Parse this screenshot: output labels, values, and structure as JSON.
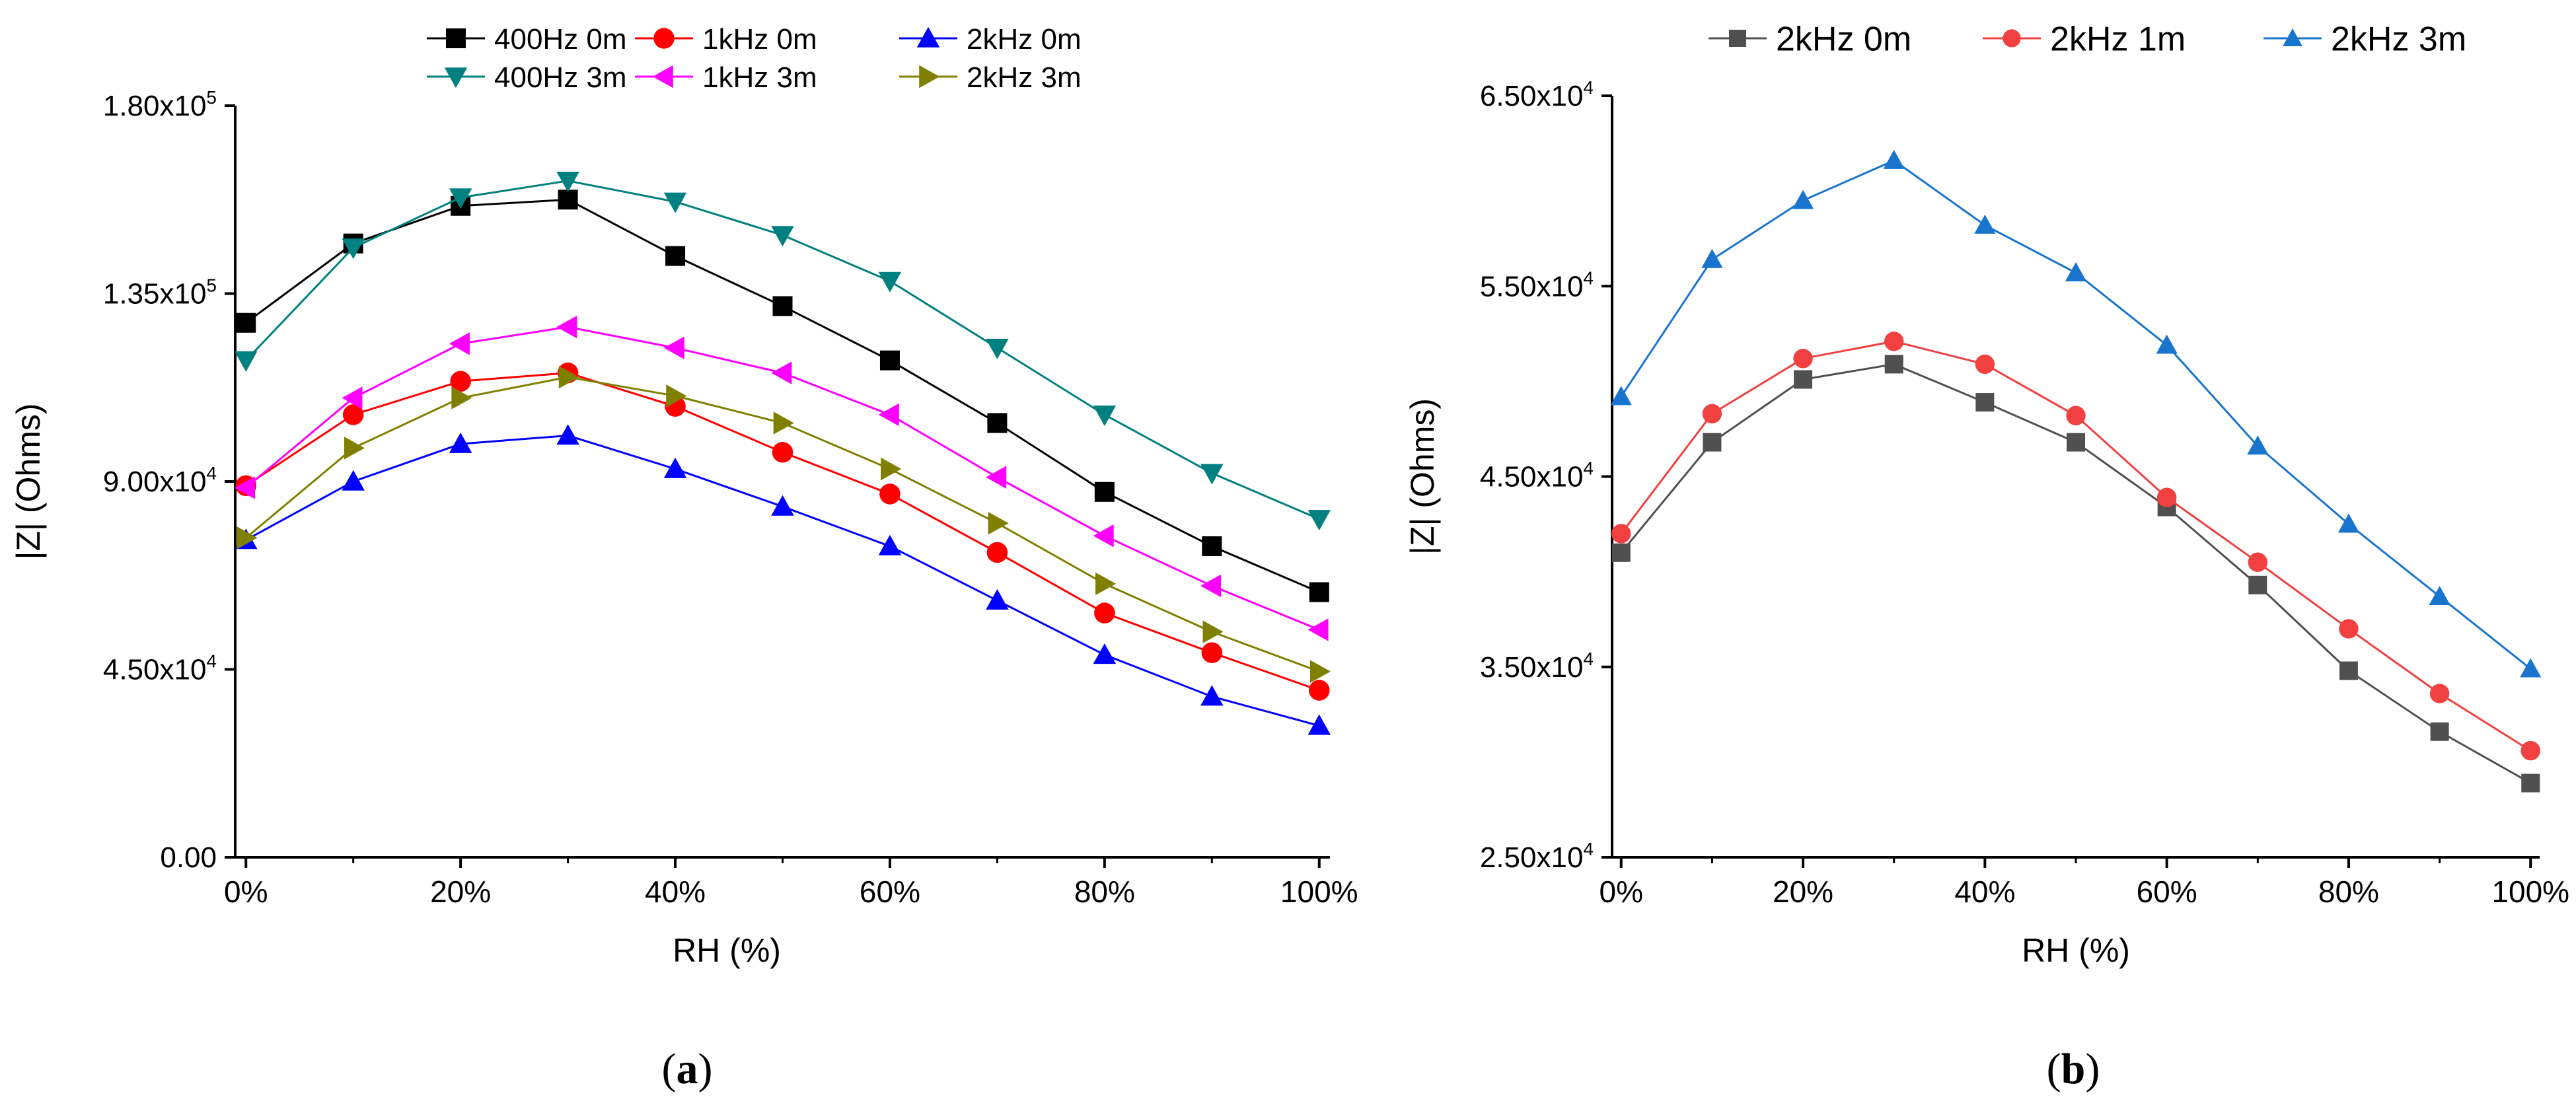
{
  "chart_data": [
    {
      "type": "line",
      "panel_label": "a",
      "xlabel": "RH (%)",
      "ylabel": "|Z| (Ohms)",
      "x": [
        0,
        10,
        20,
        30,
        40,
        50,
        60,
        70,
        80,
        90,
        100
      ],
      "x_ticks": [
        0,
        20,
        40,
        60,
        80,
        100
      ],
      "x_tick_labels": [
        "0%",
        "20%",
        "40%",
        "60%",
        "80%",
        "100%"
      ],
      "xlim": [
        -1,
        101
      ],
      "ylim": [
        0,
        180000
      ],
      "y_ticks": [
        0,
        45000,
        90000,
        135000,
        180000
      ],
      "y_tick_labels": [
        {
          "mant": "0.00",
          "exp": ""
        },
        {
          "mant": "4.50x10",
          "exp": "4"
        },
        {
          "mant": "9.00x10",
          "exp": "4"
        },
        {
          "mant": "1.35x10",
          "exp": "5"
        },
        {
          "mant": "1.80x10",
          "exp": "5"
        }
      ],
      "legend_position": "top-center",
      "series": [
        {
          "name": "400Hz 0m",
          "color": "#000000",
          "marker": "square",
          "values": [
            128000,
            147000,
            156000,
            157500,
            144000,
            132000,
            119000,
            104000,
            87500,
            74500,
            63500
          ]
        },
        {
          "name": "1kHz 0m",
          "color": "#ff0000",
          "marker": "circle",
          "values": [
            89000,
            106000,
            114000,
            116000,
            108000,
            97000,
            87000,
            73000,
            58500,
            49000,
            40000
          ]
        },
        {
          "name": "2kHz 0m",
          "color": "#0000ff",
          "marker": "triangle-up",
          "values": [
            76000,
            90000,
            99000,
            101000,
            93000,
            84000,
            74500,
            61500,
            48500,
            38500,
            31500
          ]
        },
        {
          "name": "400Hz 3m",
          "color": "#008080",
          "marker": "triangle-down",
          "values": [
            119000,
            146000,
            158000,
            162000,
            157000,
            149000,
            138000,
            122000,
            106000,
            92000,
            81000
          ]
        },
        {
          "name": "1kHz 3m",
          "color": "#ff00ff",
          "marker": "triangle-left",
          "values": [
            88500,
            110000,
            123000,
            127000,
            122000,
            116000,
            106000,
            91000,
            77000,
            65000,
            54500
          ]
        },
        {
          "name": "2kHz 3m",
          "color": "#808000",
          "marker": "triangle-right",
          "values": [
            76500,
            98000,
            110000,
            115000,
            110500,
            104000,
            93000,
            80000,
            65500,
            54000,
            44500
          ]
        }
      ]
    },
    {
      "type": "line",
      "panel_label": "b",
      "xlabel": "RH (%)",
      "ylabel": "|Z| (Ohms)",
      "x": [
        0,
        10,
        20,
        30,
        40,
        50,
        60,
        70,
        80,
        90,
        100
      ],
      "x_ticks": [
        0,
        20,
        40,
        60,
        80,
        100
      ],
      "x_tick_labels": [
        "0%",
        "20%",
        "40%",
        "60%",
        "80%",
        "100%"
      ],
      "xlim": [
        -1,
        101
      ],
      "ylim": [
        25000,
        65000
      ],
      "y_ticks": [
        25000,
        35000,
        45000,
        55000,
        65000
      ],
      "y_tick_labels": [
        {
          "mant": "2.50x10",
          "exp": "4"
        },
        {
          "mant": "3.50x10",
          "exp": "4"
        },
        {
          "mant": "4.50x10",
          "exp": "4"
        },
        {
          "mant": "5.50x10",
          "exp": "4"
        },
        {
          "mant": "6.50x10",
          "exp": "4"
        }
      ],
      "legend_position": "top-center",
      "series": [
        {
          "name": "2kHz 0m",
          "color": "#505050",
          "marker": "square",
          "values": [
            41000,
            46800,
            50100,
            50900,
            48900,
            46800,
            43400,
            39300,
            34800,
            31600,
            28900
          ]
        },
        {
          "name": "2kHz 1m",
          "color": "#f04040",
          "marker": "circle",
          "values": [
            42000,
            48300,
            51200,
            52100,
            50900,
            48200,
            43900,
            40500,
            37000,
            33600,
            30600
          ]
        },
        {
          "name": "2kHz 3m",
          "color": "#1874cd",
          "marker": "triangle-up",
          "values": [
            49200,
            56400,
            59500,
            61600,
            58200,
            55700,
            51900,
            46600,
            42500,
            38700,
            34900
          ]
        }
      ]
    }
  ]
}
